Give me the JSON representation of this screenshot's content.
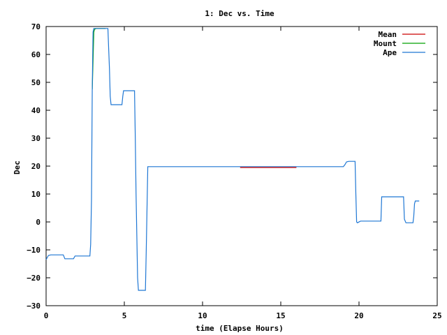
{
  "chart_data": {
    "type": "line",
    "title": "1: Dec vs. Time",
    "xlabel": "time (Elapse Hours)",
    "ylabel": "Dec",
    "xlim": [
      0,
      25
    ],
    "ylim": [
      -30,
      70
    ],
    "x_ticks": [
      0,
      5,
      10,
      15,
      20,
      25
    ],
    "y_ticks": [
      -30,
      -20,
      -10,
      0,
      10,
      20,
      30,
      40,
      50,
      60,
      70
    ],
    "grid": false,
    "legend_position": "top-right",
    "series": [
      {
        "name": "Mean",
        "color": "#cc0000",
        "x": [
          12.4,
          16.0
        ],
        "y": [
          19.5,
          19.5
        ]
      },
      {
        "name": "Mount",
        "color": "#00a000",
        "x": [
          2.95,
          3.05,
          3.1,
          3.2,
          3.8
        ],
        "y": [
          47.5,
          68.0,
          69.0,
          69.3,
          69.3
        ]
      },
      {
        "name": "Ape",
        "color": "#1f77d4",
        "x": [
          0.0,
          0.1,
          0.15,
          0.3,
          1.1,
          1.2,
          1.75,
          1.85,
          2.8,
          2.85,
          2.9,
          2.95,
          3.0,
          3.05,
          3.1,
          3.95,
          4.0,
          4.05,
          4.1,
          4.15,
          4.25,
          4.85,
          4.9,
          4.95,
          5.0,
          5.65,
          5.7,
          5.75,
          5.8,
          5.85,
          5.9,
          6.35,
          6.4,
          6.45,
          6.5,
          7.0,
          19.0,
          19.1,
          19.2,
          19.35,
          19.75,
          19.8,
          19.85,
          19.9,
          20.1,
          20.2,
          21.4,
          21.45,
          21.5,
          22.85,
          22.9,
          23.0,
          23.45,
          23.5,
          23.55,
          23.6,
          23.85
        ],
        "y": [
          -13.5,
          -12.5,
          -12.0,
          -11.8,
          -11.8,
          -13.2,
          -13.2,
          -12.2,
          -12.2,
          -8.0,
          8.0,
          48.0,
          68.0,
          69.3,
          69.3,
          69.3,
          62.0,
          55.0,
          45.0,
          42.0,
          42.0,
          42.0,
          45.0,
          47.0,
          47.0,
          47.0,
          30.0,
          10.0,
          -5.0,
          -20.0,
          -24.5,
          -24.5,
          -10.0,
          5.0,
          19.8,
          19.8,
          19.8,
          20.5,
          21.5,
          21.7,
          21.7,
          10.0,
          0.0,
          -0.3,
          0.3,
          0.3,
          0.3,
          9.0,
          9.0,
          9.0,
          1.0,
          -0.3,
          -0.3,
          2.0,
          6.5,
          7.5,
          7.5
        ]
      }
    ]
  }
}
